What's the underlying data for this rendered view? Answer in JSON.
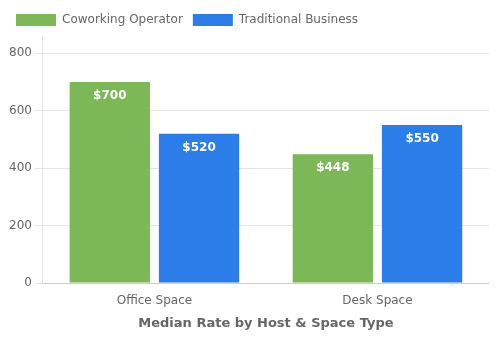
{
  "chart_data": {
    "type": "bar",
    "xlabel": "Median Rate by Host & Space Type",
    "categories": [
      "Office Space",
      "Desk Space"
    ],
    "series": [
      {
        "name": "Coworking Operator",
        "color": "#7cb855",
        "values": [
          700,
          448
        ],
        "value_labels": [
          "$700",
          "$448"
        ]
      },
      {
        "name": "Traditional Business",
        "color": "#2b7de9",
        "values": [
          520,
          550
        ],
        "value_labels": [
          "$520",
          "$550"
        ]
      }
    ],
    "ylim": [
      0,
      860
    ],
    "yticks": [
      0,
      200,
      400,
      600,
      800
    ],
    "grid": true,
    "legend": "upper left",
    "data_labels": true
  }
}
